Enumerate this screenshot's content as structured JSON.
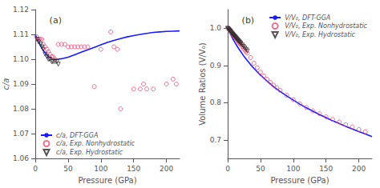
{
  "chart_data": [
    {
      "type": "line",
      "title": "(a)",
      "xlabel": "Pressure (GPa)",
      "ylabel": "c/a",
      "xlim": [
        0,
        220
      ],
      "ylim": [
        1.06,
        1.12
      ],
      "xticks": [
        0,
        50,
        100,
        150,
        200
      ],
      "yticks": [
        1.06,
        1.07,
        1.08,
        1.09,
        {
          "value": 1.1,
          "label": "1.10"
        },
        1.11,
        1.12
      ],
      "grid": false,
      "legend": "lower left",
      "series": [
        {
          "name": "c/a, DFT-GGA",
          "type": "line",
          "line_style": "solid",
          "color": "#1a1aff",
          "x": [
            0,
            3,
            6,
            10,
            15,
            20,
            25,
            30,
            35,
            40,
            50,
            60,
            70,
            80,
            90,
            100,
            110,
            120,
            130,
            140,
            150,
            160,
            170,
            180,
            190,
            200,
            210,
            220
          ],
          "values": [
            1.11,
            1.108,
            1.1065,
            1.1045,
            1.1025,
            1.101,
            1.1003,
            1.1,
            1.1,
            1.1002,
            1.1008,
            1.1018,
            1.1028,
            1.1038,
            1.1048,
            1.1058,
            1.1068,
            1.1076,
            1.1083,
            1.109,
            1.1095,
            1.11,
            1.1104,
            1.1108,
            1.111,
            1.1112,
            1.1113,
            1.1114
          ]
        },
        {
          "name": "c/a, Exp. Nonhydrostatic",
          "type": "scatter",
          "marker": "circle",
          "color": "#e8507a",
          "x": [
            2,
            4,
            6,
            8,
            10,
            12,
            15,
            18,
            20,
            22,
            25,
            27,
            30,
            35,
            40,
            45,
            50,
            55,
            60,
            65,
            70,
            75,
            80,
            90,
            100,
            115,
            120,
            125,
            130,
            150,
            160,
            165,
            170,
            180,
            200,
            210,
            215
          ],
          "values": [
            1.109,
            1.108,
            1.108,
            1.108,
            1.108,
            1.106,
            1.105,
            1.104,
            1.103,
            1.102,
            1.101,
            1.101,
            1.1,
            1.106,
            1.106,
            1.106,
            1.105,
            1.105,
            1.105,
            1.105,
            1.105,
            1.105,
            1.105,
            1.089,
            1.104,
            1.111,
            1.105,
            1.104,
            1.08,
            1.088,
            1.088,
            1.09,
            1.088,
            1.088,
            1.09,
            1.092,
            1.09
          ]
        },
        {
          "name": "c/a, Exp. Hydrostatic",
          "type": "scatter",
          "marker": "triangle-down",
          "color": "#2a2a2a",
          "x": [
            3,
            5,
            8,
            10,
            12,
            15,
            18,
            20,
            22,
            25,
            27,
            30,
            33,
            35
          ],
          "values": [
            1.108,
            1.107,
            1.106,
            1.105,
            1.104,
            1.102,
            1.101,
            1.1,
            1.1,
            1.099,
            1.099,
            1.099,
            1.099,
            1.098
          ]
        }
      ]
    },
    {
      "type": "line",
      "title": "(b)",
      "xlabel": "Pressure (GPa)",
      "ylabel": "Volume Ratios (V/V₀)",
      "xlim": [
        0,
        220
      ],
      "ylim": [
        0.65,
        1.05
      ],
      "xticks": [
        0,
        50,
        100,
        150,
        200
      ],
      "yticks": [
        0.7,
        0.8,
        0.9,
        {
          "value": 1.0,
          "label": "1.0"
        }
      ],
      "grid": false,
      "legend": "upper right",
      "series": [
        {
          "name": "V/V₀, DFT-GGA",
          "type": "line",
          "line_style": "solid",
          "color": "#1a1aff",
          "x": [
            0,
            2,
            4,
            6,
            8,
            10,
            12,
            15,
            18,
            20,
            25,
            30,
            35,
            40,
            45,
            50,
            60,
            70,
            80,
            90,
            100,
            110,
            120,
            130,
            140,
            150,
            160,
            170,
            180,
            190,
            200,
            210,
            220
          ],
          "values": [
            1.0,
            0.992,
            0.985,
            0.978,
            0.971,
            0.965,
            0.959,
            0.95,
            0.942,
            0.937,
            0.924,
            0.913,
            0.902,
            0.892,
            0.883,
            0.874,
            0.858,
            0.843,
            0.83,
            0.818,
            0.807,
            0.796,
            0.786,
            0.777,
            0.768,
            0.76,
            0.751,
            0.744,
            0.736,
            0.729,
            0.722,
            0.716,
            0.709
          ]
        },
        {
          "name": "V/V₀, Exp. Nonhydrostatic",
          "type": "scatter",
          "marker": "circle",
          "color": "#e8507a",
          "x": [
            0,
            2,
            4,
            5,
            6,
            7,
            8,
            9,
            10,
            11,
            12,
            13,
            14,
            15,
            16,
            17,
            18,
            19,
            20,
            22,
            24,
            26,
            28,
            30,
            35,
            40,
            45,
            50,
            55,
            60,
            65,
            70,
            75,
            80,
            90,
            100,
            110,
            120,
            130,
            140,
            150,
            160,
            170,
            180,
            190,
            200,
            210
          ],
          "values": [
            1.0,
            0.996,
            0.992,
            0.99,
            0.988,
            0.986,
            0.984,
            0.982,
            0.979,
            0.977,
            0.975,
            0.972,
            0.97,
            0.968,
            0.965,
            0.963,
            0.96,
            0.958,
            0.956,
            0.951,
            0.946,
            0.942,
            0.937,
            0.933,
            0.921,
            0.906,
            0.894,
            0.882,
            0.872,
            0.863,
            0.855,
            0.847,
            0.84,
            0.833,
            0.82,
            0.808,
            0.797,
            0.787,
            0.778,
            0.77,
            0.762,
            0.755,
            0.748,
            0.741,
            0.735,
            0.728,
            0.722
          ]
        },
        {
          "name": "V/V₀, Exp. Hydrostatic",
          "type": "scatter",
          "marker": "triangle-down",
          "color": "#2a2a2a",
          "x": [
            0,
            1,
            2,
            3,
            4,
            5,
            6,
            7,
            8,
            9,
            10,
            11,
            12,
            13,
            14,
            15,
            16,
            17,
            18,
            19,
            20,
            22,
            24,
            26,
            28,
            30
          ],
          "values": [
            1.0,
            0.998,
            0.996,
            0.994,
            0.992,
            0.99,
            0.987,
            0.985,
            0.983,
            0.981,
            0.979,
            0.977,
            0.975,
            0.973,
            0.971,
            0.969,
            0.967,
            0.965,
            0.963,
            0.961,
            0.959,
            0.955,
            0.951,
            0.947,
            0.943,
            0.939
          ]
        }
      ]
    }
  ]
}
